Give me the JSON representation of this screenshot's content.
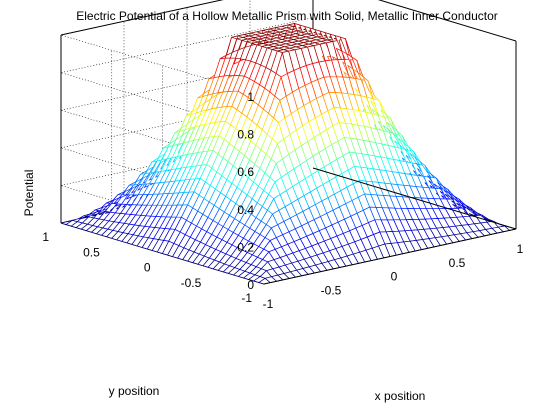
{
  "chart_data": {
    "type": "surface",
    "title": "Electric Potential of a Hollow Metallic Prism with Solid, Metallic Inner Conductor",
    "xlabel": "x position",
    "ylabel": "y position",
    "zlabel": "Potential",
    "xlim": [
      -1,
      1
    ],
    "ylim": [
      -1,
      1
    ],
    "zlim": [
      0,
      1
    ],
    "xticks": [
      "-1",
      "-0.5",
      "0",
      "0.5",
      "1"
    ],
    "yticks": [
      "-1",
      "-0.5",
      "0",
      "0.5",
      "1"
    ],
    "zticks": [
      "0",
      "0.2",
      "0.4",
      "0.6",
      "0.8",
      "1"
    ],
    "grid": true,
    "colormap": "jet",
    "inner_conductor": {
      "x": [
        -0.3,
        0.3
      ],
      "y": [
        -0.3,
        0.3
      ],
      "potential": 1
    },
    "outer_boundary_potential": 0
  }
}
